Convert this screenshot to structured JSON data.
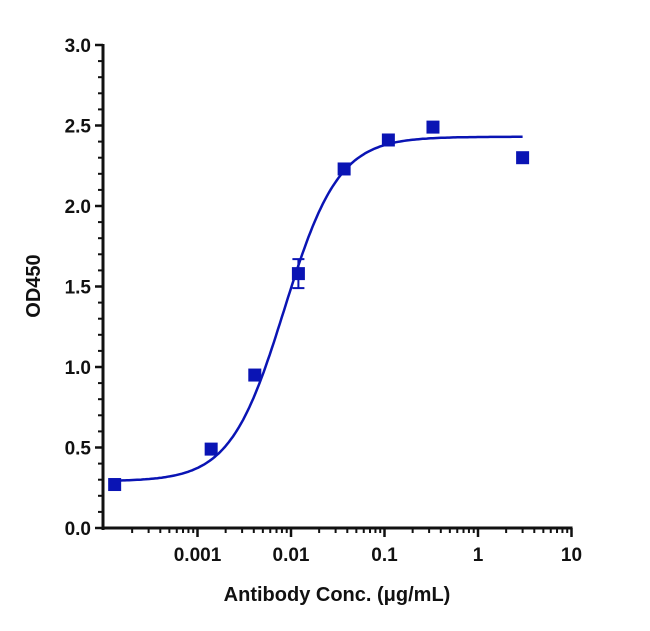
{
  "chart_data": {
    "type": "scatter",
    "title": "",
    "xlabel": "Antibody Conc. (μg/mL)",
    "ylabel": "OD450",
    "xscale": "log",
    "xlim": [
      0.0001,
      10
    ],
    "ylim": [
      0,
      3.0
    ],
    "x_ticks": [
      "0.001",
      "0.01",
      "0.1",
      "1",
      "10"
    ],
    "y_ticks": [
      "0.0",
      "0.5",
      "1.0",
      "1.5",
      "2.0",
      "2.5",
      "3.0"
    ],
    "grid": false,
    "legend": null,
    "series": [
      {
        "name": "OD450",
        "marker": "square",
        "color": "#0a14b4",
        "x": [
          0.00013,
          0.0014,
          0.0041,
          0.012,
          0.037,
          0.11,
          0.33,
          3.0
        ],
        "y": [
          0.27,
          0.49,
          0.95,
          1.58,
          2.23,
          2.41,
          2.49,
          2.3
        ],
        "error": [
          0.02,
          0.01,
          0.01,
          0.09,
          0.01,
          0.03,
          0.01,
          0.01
        ]
      }
    ],
    "fit": {
      "type": "4PL",
      "bottom": 0.29,
      "top": 2.43,
      "ec50": 0.0085,
      "hill": 1.5,
      "color": "#0a14b4",
      "x_range": [
        0.00013,
        3.0
      ]
    }
  }
}
